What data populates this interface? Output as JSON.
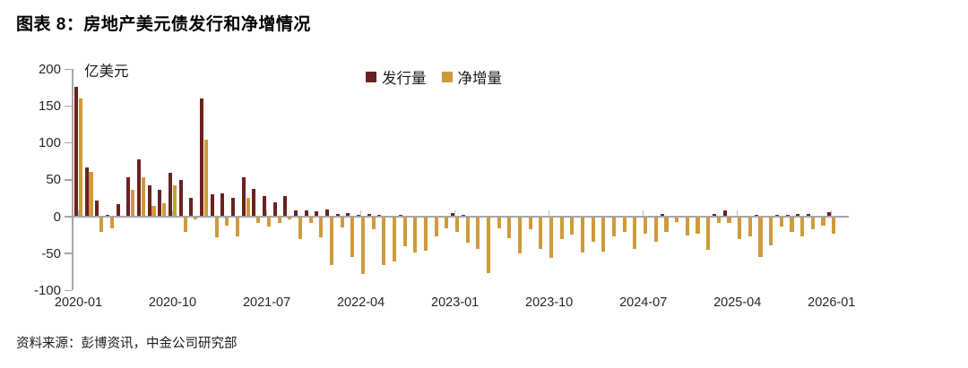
{
  "figure": {
    "title": "图表 8：房地产美元债发行和净增情况",
    "source": "资料来源：彭博资讯，中金公司研究部"
  },
  "colors": {
    "issuance": "#6b2220",
    "net": "#cf9a39",
    "axis": "#a6a6a6",
    "minor_tick": "#bdbdbd",
    "text": "#262626"
  },
  "chart_data": {
    "type": "bar",
    "title": "房地产美元债发行和净增情况",
    "unit_label": "亿美元",
    "ylabel": "亿美元",
    "ylim": [
      -100,
      200
    ],
    "y_ticks": [
      200,
      150,
      100,
      50,
      0,
      -50,
      -100
    ],
    "x_tick_labels": [
      "2020-01",
      "2020-10",
      "2021-07",
      "2022-04",
      "2023-01",
      "2023-10",
      "2024-07",
      "2025-04",
      "2026-01"
    ],
    "legend_position": "top",
    "grid": false,
    "categories": [
      "2020-01",
      "2020-02",
      "2020-03",
      "2020-04",
      "2020-05",
      "2020-06",
      "2020-07",
      "2020-08",
      "2020-09",
      "2020-10",
      "2020-11",
      "2020-12",
      "2021-01",
      "2021-02",
      "2021-03",
      "2021-04",
      "2021-05",
      "2021-06",
      "2021-07",
      "2021-08",
      "2021-09",
      "2021-10",
      "2021-11",
      "2021-12",
      "2022-01",
      "2022-02",
      "2022-03",
      "2022-04",
      "2022-05",
      "2022-06",
      "2022-07",
      "2022-08",
      "2022-09",
      "2022-10",
      "2022-11",
      "2022-12",
      "2023-01",
      "2023-02",
      "2023-03",
      "2023-04",
      "2023-05",
      "2023-06",
      "2023-07",
      "2023-08",
      "2023-09",
      "2023-10",
      "2023-11",
      "2023-12",
      "2024-01",
      "2024-02",
      "2024-03",
      "2024-04",
      "2024-05",
      "2024-06",
      "2024-07",
      "2024-08",
      "2024-09",
      "2024-10",
      "2024-11",
      "2024-12",
      "2025-01",
      "2025-02",
      "2025-03",
      "2025-04",
      "2025-05",
      "2025-06",
      "2025-07",
      "2025-08",
      "2025-09",
      "2025-10",
      "2025-11",
      "2025-12",
      "2026-01"
    ],
    "series": [
      {
        "name": "发行量",
        "color": "#6b2220",
        "values": [
          176,
          67,
          22,
          3,
          17,
          54,
          78,
          42,
          37,
          59,
          50,
          25,
          160,
          30,
          31,
          25,
          54,
          38,
          28,
          20,
          28,
          9,
          8,
          7,
          10,
          4,
          5,
          3,
          4,
          2,
          1,
          3,
          1,
          1,
          1,
          1,
          5,
          2,
          1,
          1,
          0,
          0,
          0,
          0,
          0,
          0,
          0,
          0,
          0,
          0,
          0,
          0,
          0,
          0,
          0,
          0,
          4,
          0,
          0,
          0,
          0,
          4,
          9,
          0,
          0,
          2,
          0,
          3,
          3,
          4,
          4,
          0,
          6
        ]
      },
      {
        "name": "净增量",
        "color": "#cf9a39",
        "values": [
          160,
          61,
          -20,
          -15,
          1,
          37,
          54,
          14,
          18,
          43,
          -19,
          -2,
          104,
          -27,
          -11,
          -26,
          26,
          -7,
          -12,
          -7,
          -3,
          -29,
          -7,
          -27,
          -65,
          -13,
          -53,
          -76,
          -16,
          -65,
          -60,
          -39,
          -47,
          -45,
          -26,
          -14,
          -20,
          -34,
          -42,
          -75,
          -14,
          -28,
          -48,
          -16,
          -43,
          -55,
          -29,
          -23,
          -47,
          -33,
          -46,
          -25,
          -20,
          -42,
          -22,
          -33,
          -20,
          -6,
          -24,
          -22,
          -44,
          -7,
          -7,
          -29,
          -25,
          -53,
          -38,
          -12,
          -20,
          -25,
          -16,
          -11,
          -22
        ]
      }
    ]
  }
}
